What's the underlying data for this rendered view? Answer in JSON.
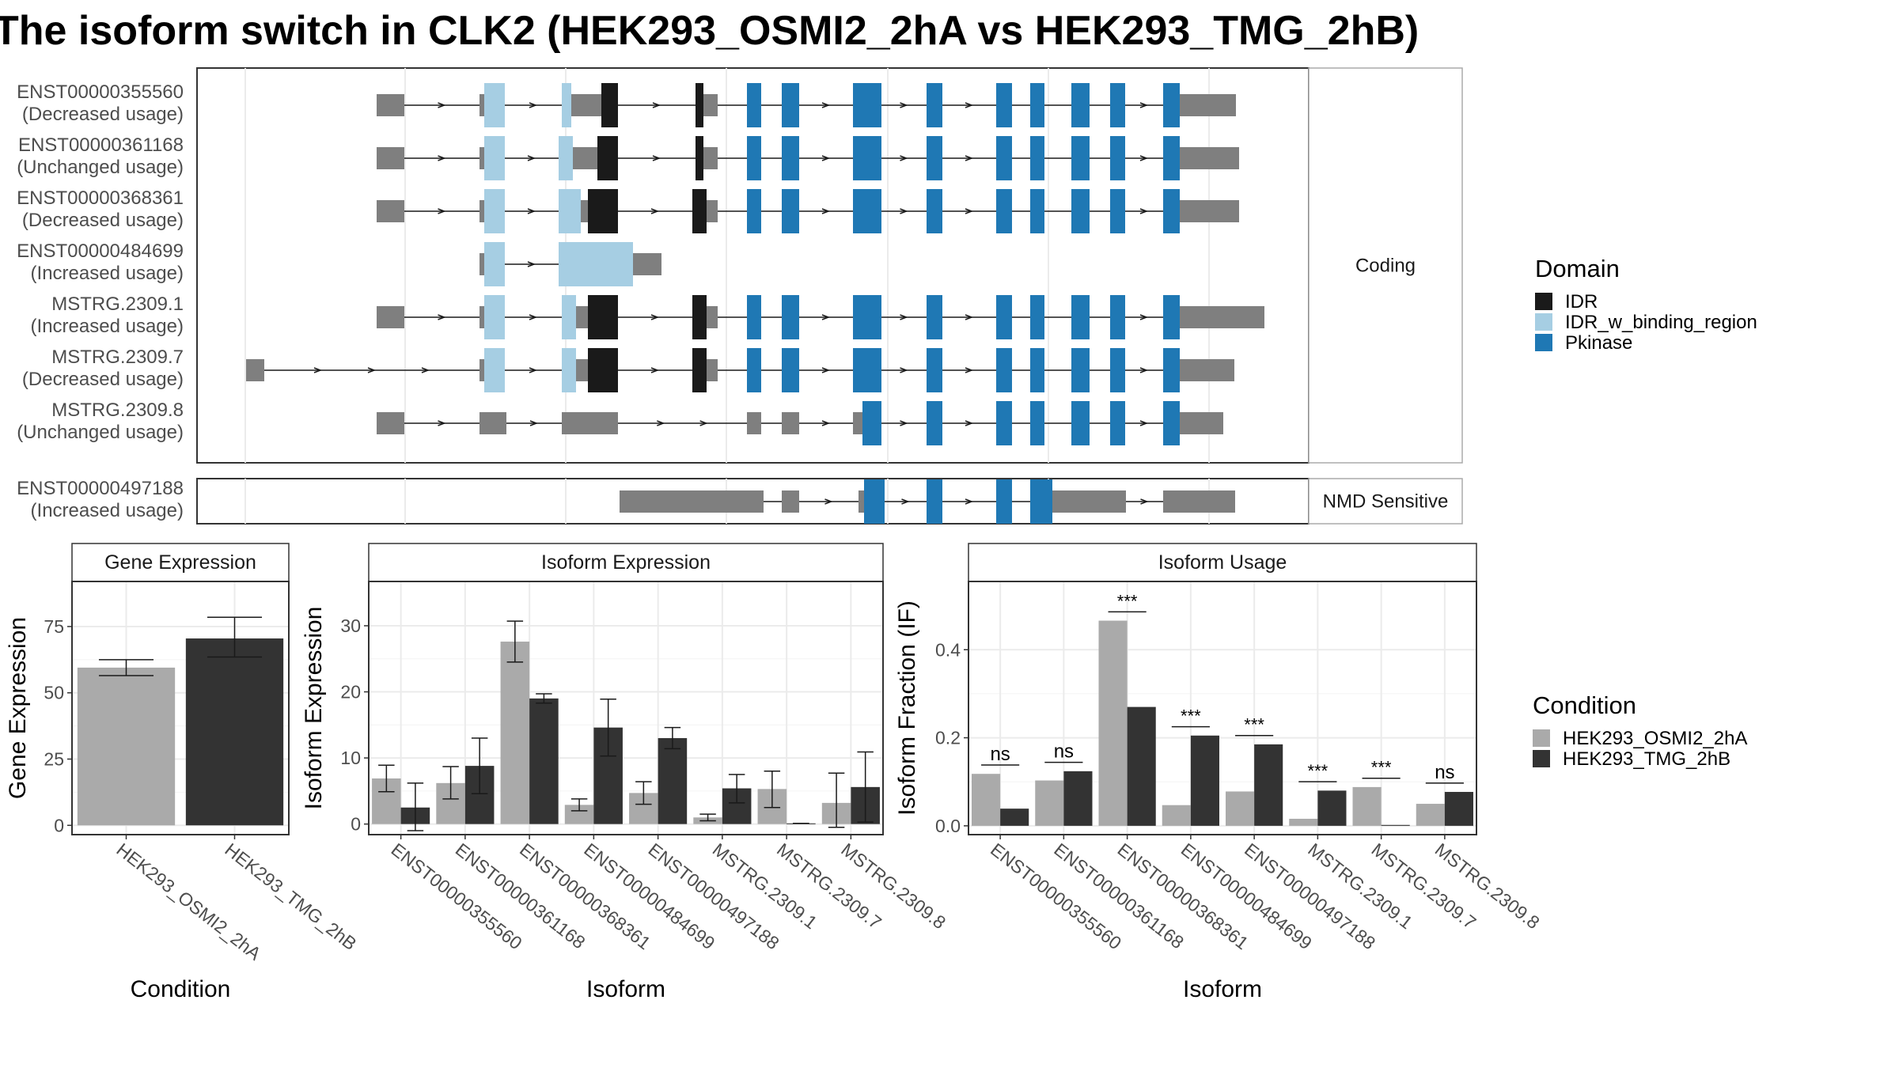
{
  "title": "The isoform switch in CLK2 (HEK293_OSMI2_2hA vs HEK293_TMG_2hB)",
  "colors": {
    "utr": "#7f7f7f",
    "IDR": "#1a1a1a",
    "IDR_w_binding_region": "#a6cee3",
    "Pkinase": "#1f78b4",
    "cond_A": "#aaaaaa",
    "cond_B": "#333333"
  },
  "chart_data": [
    {
      "type": "isoform_structure",
      "facets": [
        "Coding",
        "NMD Sensitive"
      ],
      "transcripts": [
        {
          "id": "ENST00000355560",
          "usage": "(Decreased usage)",
          "facet": 0
        },
        {
          "id": "ENST00000361168",
          "usage": "(Unchanged usage)",
          "facet": 0
        },
        {
          "id": "ENST00000368361",
          "usage": "(Decreased usage)",
          "facet": 0
        },
        {
          "id": "ENST00000484699",
          "usage": "(Increased usage)",
          "facet": 0
        },
        {
          "id": "MSTRG.2309.1",
          "usage": "(Increased usage)",
          "facet": 0
        },
        {
          "id": "MSTRG.2309.7",
          "usage": "(Decreased usage)",
          "facet": 0
        },
        {
          "id": "MSTRG.2309.8",
          "usage": "(Unchanged usage)",
          "facet": 0
        },
        {
          "id": "ENST00000497188",
          "usage": "(Increased usage)",
          "facet": 1
        }
      ],
      "legend": {
        "title": "Domain",
        "items": [
          "IDR",
          "IDR_w_binding_region",
          "Pkinase"
        ]
      }
    },
    {
      "type": "bar",
      "title": "Gene Expression",
      "xlabel": "Condition",
      "ylabel": "Gene Expression",
      "categories": [
        "HEK293_OSMI2_2hA",
        "HEK293_TMG_2hB"
      ],
      "values": [
        59.5,
        70.5
      ],
      "err_low": [
        56.5,
        63.5
      ],
      "err_high": [
        62.5,
        78.5
      ],
      "ylim": [
        -3.5,
        92
      ],
      "yticks": [
        0,
        25,
        50,
        75
      ]
    },
    {
      "type": "bar",
      "title": "Isoform Expression",
      "xlabel": "Isoform",
      "ylabel": "Isoform Expression",
      "categories": [
        "ENST00000355560",
        "ENST00000361168",
        "ENST00000368361",
        "ENST00000484699",
        "ENST00000497188",
        "MSTRG.2309.1",
        "MSTRG.2309.7",
        "MSTRG.2309.8"
      ],
      "series": [
        {
          "name": "HEK293_OSMI2_2hA",
          "values": [
            6.9,
            6.2,
            27.6,
            2.9,
            4.7,
            1.0,
            5.3,
            3.2
          ],
          "err_low": [
            4.9,
            3.8,
            24.5,
            2.0,
            3.0,
            0.5,
            2.5,
            -0.5
          ],
          "err_high": [
            8.9,
            8.7,
            30.7,
            3.8,
            6.4,
            1.5,
            8.0,
            7.7
          ]
        },
        {
          "name": "HEK293_TMG_2hB",
          "values": [
            2.5,
            8.8,
            19.0,
            14.6,
            13.0,
            5.4,
            0.1,
            5.6
          ],
          "err_low": [
            -1.0,
            4.6,
            18.3,
            10.3,
            11.4,
            3.2,
            0.1,
            0.3
          ],
          "err_high": [
            6.2,
            13.0,
            19.7,
            18.9,
            14.6,
            7.5,
            0.1,
            10.9
          ]
        }
      ],
      "ylim": [
        -1.6,
        36.7
      ],
      "yticks": [
        0,
        10,
        20,
        30
      ]
    },
    {
      "type": "bar",
      "title": "Isoform Usage",
      "xlabel": "Isoform",
      "ylabel": "Isoform Fraction (IF)",
      "categories": [
        "ENST00000355560",
        "ENST00000361168",
        "ENST00000368361",
        "ENST00000484699",
        "ENST00000497188",
        "MSTRG.2309.1",
        "MSTRG.2309.7",
        "MSTRG.2309.8"
      ],
      "series": [
        {
          "name": "HEK293_OSMI2_2hA",
          "values": [
            0.118,
            0.103,
            0.466,
            0.047,
            0.078,
            0.016,
            0.088,
            0.05
          ]
        },
        {
          "name": "HEK293_TMG_2hB",
          "values": [
            0.039,
            0.124,
            0.27,
            0.205,
            0.185,
            0.08,
            0.002,
            0.077
          ]
        }
      ],
      "significance": [
        "ns",
        "ns",
        "***",
        "***",
        "***",
        "***",
        "***",
        "ns"
      ],
      "ylim": [
        -0.02,
        0.555
      ],
      "yticks": [
        0.0,
        0.2,
        0.4
      ],
      "ytick_labels": [
        "0.0",
        "0.2",
        "0.4"
      ],
      "legend": {
        "title": "Condition",
        "items": [
          "HEK293_OSMI2_2hA",
          "HEK293_TMG_2hB"
        ]
      }
    }
  ]
}
